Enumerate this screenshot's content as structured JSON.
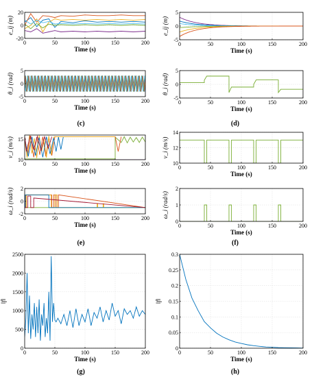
{
  "colors": {
    "blue": "#0072bd",
    "orange": "#d95319",
    "yellow": "#edb120",
    "purple": "#7e2f8e",
    "green": "#77ac30",
    "cyan": "#4dbeee",
    "red": "#a2142f"
  },
  "captions": [
    "(c)",
    "(d)",
    "(e)",
    "(f)",
    "(g)",
    "(h)"
  ],
  "chart_data": [
    {
      "id": "c-top",
      "type": "line",
      "ylabel": "e_ij (m)",
      "xlabel": "Time (s)",
      "xlim": [
        0,
        200
      ],
      "ylim": [
        -20,
        20
      ],
      "xticks": [
        0,
        50,
        100,
        150,
        200
      ],
      "yticks": [
        -20,
        0,
        20
      ],
      "grid": true,
      "series": [
        {
          "color": "blue",
          "x": [
            0,
            10,
            20,
            30,
            40,
            50,
            60,
            80,
            100,
            120,
            140,
            160,
            180,
            200
          ],
          "y": [
            5,
            12,
            -2,
            8,
            10,
            -3,
            6,
            4,
            7,
            5,
            6,
            5,
            6,
            5
          ]
        },
        {
          "color": "orange",
          "x": [
            0,
            10,
            20,
            30,
            40,
            50,
            60,
            80,
            100,
            120,
            140,
            160,
            180,
            200
          ],
          "y": [
            0,
            18,
            5,
            15,
            14,
            12,
            15,
            14,
            16,
            15,
            15,
            16,
            15,
            15
          ]
        },
        {
          "color": "yellow",
          "x": [
            0,
            10,
            20,
            30,
            40,
            50,
            60,
            80,
            100,
            120,
            140,
            160,
            180,
            200
          ],
          "y": [
            -5,
            0,
            10,
            -10,
            5,
            10,
            8,
            9,
            8,
            9,
            8,
            9,
            8,
            9
          ]
        },
        {
          "color": "purple",
          "x": [
            0,
            10,
            20,
            30,
            40,
            50,
            60,
            80,
            100,
            120,
            140,
            160,
            180,
            200
          ],
          "y": [
            -8,
            -10,
            -5,
            -12,
            -10,
            -8,
            -10,
            -9,
            -10,
            -9,
            -10,
            -9,
            -10,
            -9
          ]
        },
        {
          "color": "green",
          "x": [
            0,
            10,
            20,
            30,
            40,
            50,
            60,
            80,
            100,
            120,
            140,
            160,
            180,
            200
          ],
          "y": [
            2,
            -5,
            3,
            -4,
            2,
            0,
            1,
            0,
            1,
            0,
            1,
            0,
            1,
            0
          ]
        },
        {
          "color": "cyan",
          "x": [
            0,
            10,
            20,
            30,
            40,
            50,
            60,
            80,
            100,
            120,
            140,
            160,
            180,
            200
          ],
          "y": [
            8,
            2,
            8,
            4,
            6,
            2,
            3,
            2,
            3,
            2,
            3,
            2,
            3,
            2
          ]
        }
      ]
    },
    {
      "id": "c-bottom",
      "type": "line",
      "ylabel": "θ_i (rad)",
      "xlabel": "Time (s)",
      "xlim": [
        0,
        200
      ],
      "ylim": [
        -5,
        5
      ],
      "xticks": [
        0,
        50,
        100,
        150,
        200
      ],
      "yticks": [
        -5,
        0,
        5
      ],
      "grid": true,
      "oscillation": {
        "amplitude": 3.1,
        "cycles": 36,
        "colors": [
          "blue",
          "orange",
          "yellow",
          "purple",
          "green",
          "cyan"
        ]
      }
    },
    {
      "id": "d-top",
      "type": "line",
      "ylabel": "e_ij (m)",
      "xlabel": "Time (s)",
      "xlim": [
        0,
        200
      ],
      "ylim": [
        -5,
        5
      ],
      "xticks": [
        0,
        50,
        100,
        150,
        200
      ],
      "yticks": [
        -5,
        0,
        5
      ],
      "grid": true,
      "decay": [
        {
          "color": "purple",
          "y0": 3.2
        },
        {
          "color": "blue",
          "y0": 1.8
        },
        {
          "color": "cyan",
          "y0": 0.9
        },
        {
          "color": "green",
          "y0": -0.6
        },
        {
          "color": "yellow",
          "y0": -2.2
        },
        {
          "color": "orange",
          "y0": -3.8
        }
      ]
    },
    {
      "id": "d-bottom",
      "type": "line",
      "ylabel": "θ_i (rad)",
      "xlabel": "Time (s)",
      "xlim": [
        0,
        200
      ],
      "ylim": [
        -5,
        5
      ],
      "xticks": [
        0,
        50,
        100,
        150,
        200
      ],
      "yticks": [
        -5,
        0,
        5
      ],
      "grid": true,
      "series": [
        {
          "color": "green",
          "x": [
            0,
            40,
            40,
            44,
            80,
            80,
            84,
            120,
            120,
            124,
            160,
            160,
            164,
            200
          ],
          "y": [
            0.6,
            0.6,
            1.5,
            3.0,
            3.0,
            -3.0,
            -1.0,
            -1.0,
            0.0,
            1.6,
            1.6,
            -3.0,
            -1.8,
            -1.8
          ]
        }
      ]
    },
    {
      "id": "e-top",
      "type": "line",
      "ylabel": "v_i (m/s)",
      "xlabel": "Time (s)",
      "xlim": [
        0,
        200
      ],
      "ylim": [
        10,
        16
      ],
      "xticks": [
        0,
        50,
        100,
        150,
        200
      ],
      "yticks": [
        10,
        15
      ],
      "grid": true,
      "series": [
        {
          "color": "purple",
          "x": [
            0,
            200
          ],
          "y": [
            10.0,
            10.0
          ]
        },
        {
          "color": "green",
          "x": [
            0,
            50,
            50,
            150,
            150,
            160,
            165,
            170,
            175,
            180,
            185,
            190,
            195,
            200
          ],
          "y": [
            10.2,
            10.2,
            10.2,
            10.2,
            15.5,
            14.2,
            15.6,
            14.1,
            15.5,
            14.3,
            15.4,
            14.2,
            15.5,
            14.3
          ]
        },
        {
          "color": "orange",
          "x": [
            0,
            5,
            10,
            15,
            20,
            25,
            30,
            35,
            40,
            45,
            50,
            55,
            60,
            80,
            100,
            120,
            140,
            150,
            155,
            160
          ],
          "y": [
            15.5,
            11.0,
            15.8,
            10.6,
            15.5,
            11.2,
            15.6,
            10.8,
            15.4,
            11.0,
            15.6,
            15.6,
            15.6,
            15.6,
            15.6,
            15.6,
            15.6,
            15.6,
            12.0,
            15.6
          ]
        },
        {
          "color": "yellow",
          "x": [
            0,
            4,
            8,
            12,
            16,
            20,
            24,
            28,
            32,
            36,
            40,
            44,
            48,
            52,
            60,
            80,
            100,
            120,
            140,
            150
          ],
          "y": [
            14.8,
            10.5,
            15.9,
            11.5,
            15.2,
            10.4,
            15.9,
            12.0,
            15.0,
            10.5,
            15.8,
            11.2,
            15.5,
            15.6,
            15.6,
            15.6,
            15.6,
            15.6,
            15.6,
            15.6
          ]
        },
        {
          "color": "blue",
          "x": [
            0,
            6,
            12,
            18,
            24,
            30,
            36,
            42,
            48,
            52,
            56,
            60,
            64
          ],
          "y": [
            15.2,
            10.8,
            15.6,
            11.0,
            15.4,
            10.6,
            15.6,
            11.4,
            15.3,
            12.0,
            15.5,
            12.5,
            15.5
          ]
        },
        {
          "color": "red",
          "x": [
            0,
            3,
            9,
            15,
            21,
            27,
            33,
            39,
            45
          ],
          "y": [
            15.6,
            12.0,
            15.8,
            12.5,
            15.7,
            12.2,
            15.6,
            12.8,
            15.6
          ]
        }
      ]
    },
    {
      "id": "e-bottom",
      "type": "line",
      "ylabel": "ω_i (rad/s)",
      "xlabel": "Time (s)",
      "xlim": [
        0,
        200
      ],
      "ylim": [
        -2,
        2
      ],
      "xticks": [
        0,
        50,
        100,
        150,
        200
      ],
      "yticks": [
        -2,
        0,
        2
      ],
      "grid": true,
      "series": [
        {
          "color": "green",
          "x": [
            0,
            200
          ],
          "y": [
            -1,
            -1
          ]
        },
        {
          "color": "orange",
          "x": [
            0,
            2,
            2,
            45,
            45,
            48,
            48,
            52,
            52,
            56,
            56,
            200
          ],
          "y": [
            -1,
            -1,
            1,
            1,
            -1,
            -1,
            1,
            1,
            -1,
            -1,
            1,
            -1
          ]
        },
        {
          "color": "yellow",
          "x": [
            0,
            3,
            3,
            44,
            44,
            50,
            50,
            54,
            54,
            58,
            58,
            120,
            120,
            121,
            121,
            130,
            130,
            131,
            131,
            200
          ],
          "y": [
            -1,
            -1,
            1,
            1,
            -1,
            -1,
            1,
            1,
            -1,
            -1,
            -1,
            -1,
            -0.4,
            -0.4,
            -1,
            -1,
            -0.4,
            -0.4,
            -1,
            -1
          ]
        },
        {
          "color": "blue",
          "x": [
            0,
            1,
            1,
            40,
            40,
            200
          ],
          "y": [
            -1,
            -1,
            1,
            1,
            -1,
            -1
          ]
        },
        {
          "color": "red",
          "x": [
            0,
            5,
            5,
            10,
            10,
            15,
            15,
            200
          ],
          "y": [
            -1,
            -1,
            0.8,
            0.8,
            -1,
            -1,
            0.5,
            -1
          ]
        }
      ]
    },
    {
      "id": "f-top",
      "type": "line",
      "ylabel": "v_i (m/s)",
      "xlabel": "Time (s)",
      "xlim": [
        0,
        200
      ],
      "ylim": [
        10,
        14
      ],
      "xticks": [
        0,
        50,
        100,
        150,
        200
      ],
      "yticks": [
        10,
        12,
        14
      ],
      "grid": true,
      "series": [
        {
          "color": "green",
          "x": [
            0,
            40,
            40,
            44,
            44,
            80,
            80,
            84,
            84,
            120,
            120,
            124,
            124,
            160,
            160,
            164,
            164,
            200
          ],
          "y": [
            13,
            13,
            10,
            10,
            13,
            13,
            10,
            10,
            13,
            13,
            10,
            10,
            13,
            13,
            10,
            10,
            13,
            13
          ]
        }
      ]
    },
    {
      "id": "f-bottom",
      "type": "line",
      "ylabel": "ω_i (rad/s)",
      "xlabel": "Time (s)",
      "xlim": [
        0,
        200
      ],
      "ylim": [
        0,
        2
      ],
      "xticks": [
        0,
        50,
        100,
        150,
        200
      ],
      "yticks": [
        0,
        1,
        2
      ],
      "grid": true,
      "series": [
        {
          "color": "green",
          "x": [
            0,
            40,
            40,
            44,
            44,
            80,
            80,
            84,
            84,
            120,
            120,
            124,
            124,
            160,
            160,
            164,
            164,
            200
          ],
          "y": [
            0,
            0,
            1,
            1,
            0,
            0,
            1,
            1,
            0,
            0,
            1,
            1,
            0,
            0,
            1,
            1,
            0,
            0
          ]
        }
      ]
    },
    {
      "id": "g",
      "type": "line",
      "ylabel": "‖f‖",
      "xlabel": "Time (s)",
      "xlim": [
        0,
        200
      ],
      "ylim": [
        0,
        2500
      ],
      "xticks": [
        0,
        50,
        100,
        150,
        200
      ],
      "yticks": [
        0,
        500,
        1000,
        1500,
        2000,
        2500
      ],
      "grid": true,
      "series": [
        {
          "color": "blue",
          "x": [
            0,
            2,
            4,
            6,
            8,
            10,
            12,
            14,
            16,
            18,
            20,
            22,
            24,
            26,
            28,
            30,
            32,
            34,
            36,
            38,
            40,
            42,
            44,
            46,
            48,
            50,
            52,
            55,
            60,
            65,
            70,
            75,
            80,
            85,
            90,
            95,
            100,
            105,
            110,
            115,
            120,
            125,
            130,
            135,
            140,
            145,
            150,
            155,
            160,
            165,
            170,
            175,
            180,
            185,
            190,
            195,
            200
          ],
          "y": [
            300,
            800,
            2000,
            400,
            1400,
            250,
            900,
            500,
            1200,
            300,
            1100,
            400,
            1300,
            200,
            900,
            600,
            1200,
            300,
            800,
            400,
            1500,
            200,
            2450,
            700,
            1200,
            750,
            700,
            800,
            650,
            900,
            600,
            1000,
            550,
            1050,
            600,
            900,
            700,
            1050,
            600,
            950,
            800,
            1100,
            700,
            1000,
            750,
            1200,
            850,
            1000,
            650,
            1050,
            900,
            1000,
            800,
            1100,
            850,
            1000,
            900
          ]
        }
      ]
    },
    {
      "id": "h",
      "type": "line",
      "ylabel": "‖f‖",
      "xlabel": "Time (s)",
      "xlim": [
        0,
        200
      ],
      "ylim": [
        0,
        0.3
      ],
      "xticks": [
        0,
        50,
        100,
        150,
        200
      ],
      "yticks": [
        0,
        0.05,
        0.1,
        0.15,
        0.2,
        0.25,
        0.3
      ],
      "grid": true,
      "series": [
        {
          "color": "blue",
          "x": [
            0,
            10,
            20,
            30,
            40,
            50,
            60,
            70,
            80,
            90,
            100,
            110,
            120,
            130,
            140,
            150,
            160,
            170,
            180,
            190,
            200
          ],
          "y": [
            0.3,
            0.22,
            0.16,
            0.12,
            0.085,
            0.065,
            0.048,
            0.036,
            0.027,
            0.02,
            0.015,
            0.011,
            0.008,
            0.006,
            0.004,
            0.003,
            0.002,
            0.0015,
            0.001,
            0.0008,
            0.0005
          ]
        }
      ]
    }
  ]
}
